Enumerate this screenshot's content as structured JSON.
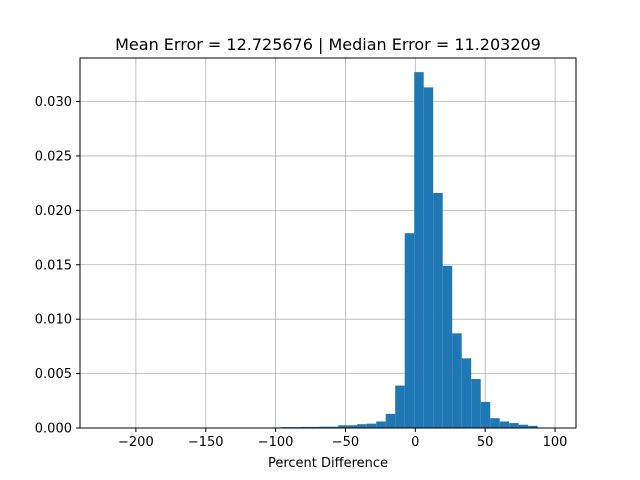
{
  "chart_data": {
    "type": "bar",
    "subtype": "histogram",
    "title": "Mean Error = 12.725676 | Median Error = 11.203209",
    "xlabel": "Percent Difference",
    "ylabel": "",
    "xlim": [
      -240,
      115
    ],
    "ylim": [
      0,
      0.034
    ],
    "grid": true,
    "bar_color": "#1f77b4",
    "x_ticks": [
      -200,
      -150,
      -100,
      -50,
      0,
      50,
      100
    ],
    "x_tick_labels": [
      "−200",
      "−150",
      "−100",
      "−50",
      "0",
      "50",
      "100"
    ],
    "y_ticks": [
      0,
      0.005,
      0.01,
      0.015,
      0.02,
      0.025,
      0.03
    ],
    "y_tick_labels": [
      "0.000",
      "0.005",
      "0.010",
      "0.015",
      "0.020",
      "0.025",
      "0.030"
    ],
    "bin_width": 6.8,
    "bin_edges_start": -232.0,
    "values": [
      1e-05,
      1e-05,
      1e-05,
      1e-05,
      1e-05,
      1e-05,
      1e-05,
      1e-05,
      1e-05,
      1e-05,
      1e-05,
      1e-05,
      1e-05,
      1e-05,
      1e-05,
      1e-05,
      1e-05,
      1e-05,
      2e-05,
      5e-05,
      8e-05,
      8e-05,
      0.0001,
      0.0001,
      0.00012,
      0.00012,
      0.00025,
      0.00025,
      0.00035,
      0.0004,
      0.0006,
      0.0013,
      0.0039,
      0.0179,
      0.0327,
      0.0313,
      0.0216,
      0.0149,
      0.0087,
      0.0064,
      0.0045,
      0.0024,
      0.0009,
      0.0006,
      0.00045,
      0.0003,
      0.0002
    ]
  }
}
